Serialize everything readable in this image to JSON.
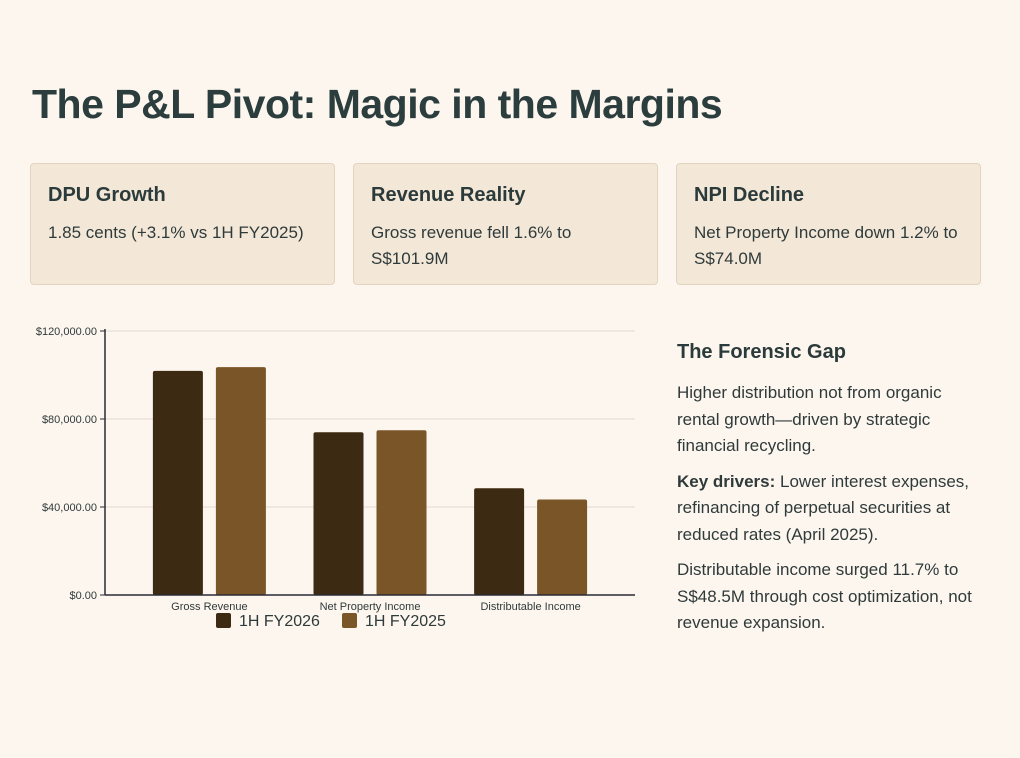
{
  "title": "The P&L Pivot: Magic in the Margins",
  "cards": [
    {
      "title": "DPU Growth",
      "body": "1.85 cents (+3.1% vs 1H FY2025)"
    },
    {
      "title": "Revenue Reality",
      "body": "Gross revenue fell 1.6% to S$101.9M"
    },
    {
      "title": "NPI Decline",
      "body": "Net Property Income down 1.2% to S$74.0M"
    }
  ],
  "sidebar": {
    "title": "The Forensic Gap",
    "p1": "Higher distribution not from organic rental growth—driven by strategic financial recycling.",
    "p2_label": "Key drivers:",
    "p2_text": " Lower interest expenses, refinancing of perpetual securities at reduced rates (April 2025).",
    "p3": "Distributable income surged 11.7% to S$48.5M through cost optimization, not revenue expansion."
  },
  "colors": {
    "series_1": "#3d2a12",
    "series_2": "#7a5527",
    "grid": "#e4dbd1",
    "axis": "#2a2a35"
  },
  "chart_data": {
    "type": "bar",
    "categories": [
      "Gross Revenue",
      "Net Property Income",
      "Distributable Income"
    ],
    "series": [
      {
        "name": "1H FY2026",
        "values": [
          101900,
          74000,
          48500
        ]
      },
      {
        "name": "1H FY2025",
        "values": [
          103600,
          74900,
          43400
        ]
      }
    ],
    "yticks": [
      "$0.00",
      "$40,000.00",
      "$80,000.00",
      "$120,000.00"
    ],
    "ytick_values": [
      0,
      40000,
      80000,
      120000
    ],
    "ylim": [
      0,
      120000
    ],
    "grid": true,
    "legend": "bottom"
  }
}
